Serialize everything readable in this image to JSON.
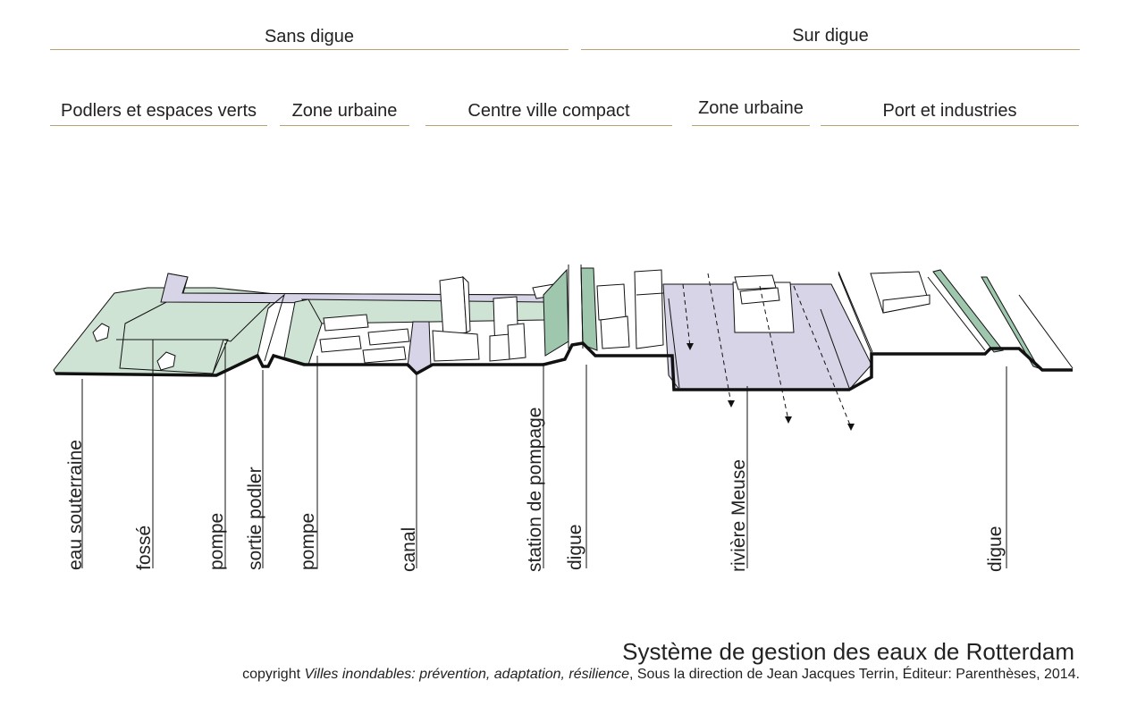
{
  "levels": {
    "top": [
      "Sans digue",
      "Sur digue"
    ],
    "zones": [
      "Podlers et espaces verts",
      "Zone urbaine",
      "Centre ville compact",
      "Zone urbaine",
      "Port et industries"
    ]
  },
  "labels": [
    "eau souterraine",
    "fossé",
    "pompe",
    "sortie podler",
    "pompe",
    "canal",
    "station de pompage",
    "digue",
    "rivière Meuse",
    "digue"
  ],
  "caption": {
    "title": "Système de gestion des eaux de Rotterdam",
    "credit_prefix": "copyright ",
    "credit_book": "Villes inondables: prévention, adaptation, résilience",
    "credit_rest": ", Sous la direction de Jean Jacques Terrin, Éditeur: Parenthèses, 2014."
  },
  "colors": {
    "green_fill": "#cfe3d4",
    "green_dark": "#9ec7ad",
    "water_fill": "#d6d4e6",
    "rule": "#b8a070",
    "ground": "#111111"
  }
}
